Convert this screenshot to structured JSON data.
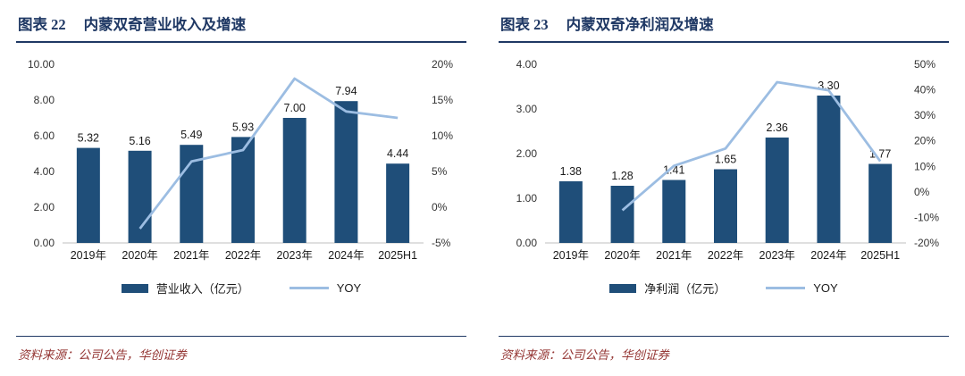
{
  "colors": {
    "navy": "#1F3864",
    "bar": "#1F4E79",
    "line": "#9CBDE2",
    "axis_text": "#333333",
    "label_text": "#1a1a1a",
    "source_red": "#953735",
    "baseline": "#bfbfbf"
  },
  "panels": [
    {
      "fig_label": "图表 22",
      "title": "内蒙双奇营业收入及增速",
      "legend_bar_label": "营业收入（亿元）",
      "legend_line_label": "YOY",
      "source": "资料来源：公司公告，华创证券"
    },
    {
      "fig_label": "图表 23",
      "title": "内蒙双奇净利润及增速",
      "legend_bar_label": "净利润（亿元）",
      "legend_line_label": "YOY",
      "source": "资料来源：公司公告，华创证券"
    }
  ],
  "chart_data": [
    {
      "type": "bar",
      "title": "内蒙双奇营业收入及增速",
      "categories": [
        "2019年",
        "2020年",
        "2021年",
        "2022年",
        "2023年",
        "2024年",
        "2025H1"
      ],
      "series": [
        {
          "name": "营业收入（亿元）",
          "type": "bar",
          "axis": "left",
          "values": [
            5.32,
            5.16,
            5.49,
            5.93,
            7.0,
            7.94,
            4.44
          ],
          "labels": [
            "5.32",
            "5.16",
            "5.49",
            "5.93",
            "7.00",
            "7.94",
            "4.44"
          ]
        },
        {
          "name": "YOY",
          "type": "line",
          "axis": "right",
          "values": [
            null,
            -3.0,
            6.4,
            8.0,
            18.0,
            13.4,
            12.5
          ]
        }
      ],
      "left_axis": {
        "min": 0,
        "max": 10,
        "ticks": [
          "0.00",
          "2.00",
          "4.00",
          "6.00",
          "8.00",
          "10.00"
        ]
      },
      "right_axis": {
        "min": -5,
        "max": 20,
        "ticks": [
          "-5%",
          "0%",
          "5%",
          "10%",
          "15%",
          "20%"
        ]
      },
      "grid": false,
      "legend_position": "bottom"
    },
    {
      "type": "bar",
      "title": "内蒙双奇净利润及增速",
      "categories": [
        "2019年",
        "2020年",
        "2021年",
        "2022年",
        "2023年",
        "2024年",
        "2025H1"
      ],
      "series": [
        {
          "name": "净利润（亿元）",
          "type": "bar",
          "axis": "left",
          "values": [
            1.38,
            1.28,
            1.41,
            1.65,
            2.36,
            3.3,
            1.77
          ],
          "labels": [
            "1.38",
            "1.28",
            "1.41",
            "1.65",
            "2.36",
            "3.30",
            "1.77"
          ]
        },
        {
          "name": "YOY",
          "type": "line",
          "axis": "right",
          "values": [
            null,
            -7.2,
            10.2,
            17.0,
            43.0,
            39.8,
            12.0
          ]
        }
      ],
      "left_axis": {
        "min": 0,
        "max": 4,
        "ticks": [
          "0.00",
          "1.00",
          "2.00",
          "3.00",
          "4.00"
        ]
      },
      "right_axis": {
        "min": -20,
        "max": 50,
        "ticks": [
          "-20%",
          "-10%",
          "0%",
          "10%",
          "20%",
          "30%",
          "40%",
          "50%"
        ]
      },
      "grid": false,
      "legend_position": "bottom"
    }
  ]
}
